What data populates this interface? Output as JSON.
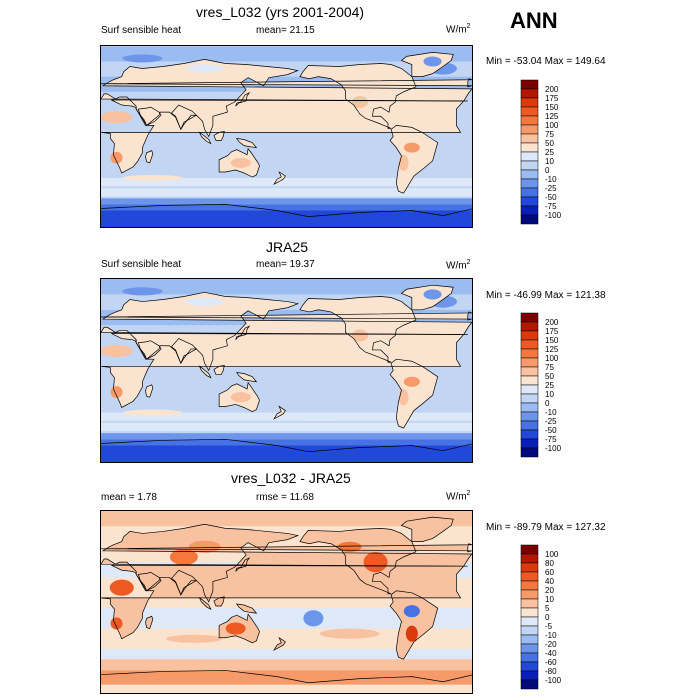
{
  "season": "ANN",
  "panels": [
    {
      "title": "vres_L032 (yrs 2001-2004)",
      "left_label": "Surf sensible heat",
      "center_label": "mean=  21.15",
      "units": "W/m",
      "units_sup": "2",
      "minmax": "Min = -53.04 Max = 149.64",
      "field": "sensible_heat",
      "levels": [
        "200",
        "175",
        "150",
        "125",
        "100",
        "75",
        "50",
        "25",
        "10",
        "0",
        "-10",
        "-25",
        "-50",
        "-75",
        "-100"
      ],
      "colors": [
        "#7a0000",
        "#b01800",
        "#dc3a0c",
        "#ee5a24",
        "#f4783c",
        "#f79a6a",
        "#f8c2a0",
        "#fae4d0",
        "#dde8f8",
        "#c2d6f4",
        "#9bbcf0",
        "#6d95ea",
        "#4672e4",
        "#2148d8",
        "#0a1fb8",
        "#000a7a"
      ]
    },
    {
      "title": "JRA25",
      "left_label": "Surf sensible heat",
      "center_label": "mean=  19.37",
      "units": "W/m",
      "units_sup": "2",
      "minmax": "Min = -46.99 Max = 121.38",
      "field": "sensible_heat",
      "levels": [
        "200",
        "175",
        "150",
        "125",
        "100",
        "75",
        "50",
        "25",
        "10",
        "0",
        "-10",
        "-25",
        "-50",
        "-75",
        "-100"
      ],
      "colors": [
        "#7a0000",
        "#b01800",
        "#dc3a0c",
        "#ee5a24",
        "#f4783c",
        "#f79a6a",
        "#f8c2a0",
        "#fae4d0",
        "#dde8f8",
        "#c2d6f4",
        "#9bbcf0",
        "#6d95ea",
        "#4672e4",
        "#2148d8",
        "#0a1fb8",
        "#000a7a"
      ]
    },
    {
      "title": "vres_L032 - JRA25",
      "left_label": "mean =   1.78",
      "center_label": "rmse =  11.68",
      "units": "W/m",
      "units_sup": "2",
      "minmax": "Min = -89.79 Max = 127.32",
      "field": "difference",
      "levels": [
        "100",
        "80",
        "60",
        "40",
        "20",
        "10",
        "5",
        "0",
        "-5",
        "-10",
        "-20",
        "-40",
        "-60",
        "-80",
        "-100"
      ],
      "colors": [
        "#7a0000",
        "#b01800",
        "#dc3a0c",
        "#ee5a24",
        "#f4783c",
        "#f79a6a",
        "#f8c2a0",
        "#fae4d0",
        "#dde8f8",
        "#c2d6f4",
        "#9bbcf0",
        "#6d95ea",
        "#4672e4",
        "#2148d8",
        "#0a1fb8",
        "#000a7a"
      ]
    }
  ],
  "chart_data": [
    {
      "type": "heatmap",
      "title": "vres_L032 (yrs 2001-2004)",
      "variable": "Surf sensible heat",
      "units": "W/m2",
      "mean": 21.15,
      "min": -53.04,
      "max": 149.64,
      "contour_levels": [
        -100,
        -75,
        -50,
        -25,
        -10,
        0,
        10,
        25,
        50,
        75,
        100,
        125,
        150,
        175,
        200
      ]
    },
    {
      "type": "heatmap",
      "title": "JRA25",
      "variable": "Surf sensible heat",
      "units": "W/m2",
      "mean": 19.37,
      "min": -46.99,
      "max": 121.38,
      "contour_levels": [
        -100,
        -75,
        -50,
        -25,
        -10,
        0,
        10,
        25,
        50,
        75,
        100,
        125,
        150,
        175,
        200
      ]
    },
    {
      "type": "heatmap",
      "title": "vres_L032 - JRA25",
      "units": "W/m2",
      "mean": 1.78,
      "rmse": 11.68,
      "min": -89.79,
      "max": 127.32,
      "contour_levels": [
        -100,
        -80,
        -60,
        -40,
        -20,
        -10,
        -5,
        0,
        5,
        10,
        20,
        40,
        60,
        80,
        100
      ]
    }
  ]
}
